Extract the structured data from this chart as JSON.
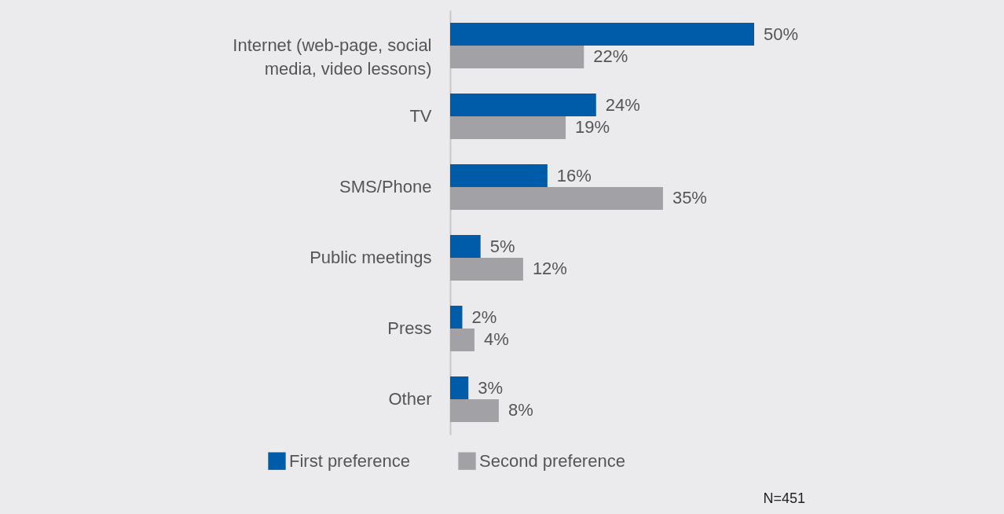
{
  "chart_data": {
    "type": "bar",
    "orientation": "horizontal",
    "categories": [
      "Internet (web-page, social media, video lessons)",
      "TV",
      "SMS/Phone",
      "Public meetings",
      "Press",
      "Other"
    ],
    "series": [
      {
        "name": "First preference",
        "color": "#005ca9",
        "values": [
          50,
          24,
          16,
          5,
          2,
          3
        ],
        "value_labels": [
          "50%",
          "24%",
          "16%",
          "5%",
          "2%",
          "3%"
        ]
      },
      {
        "name": "Second preference",
        "color": "#a2a2a6",
        "values": [
          22,
          19,
          35,
          12,
          4,
          8
        ],
        "value_labels": [
          "22%",
          "19%",
          "35%",
          "12%",
          "4%",
          "8%"
        ]
      }
    ],
    "legend": "bottom",
    "grid": false,
    "tick_labels": "y",
    "annotations": [
      "N=451"
    ]
  }
}
